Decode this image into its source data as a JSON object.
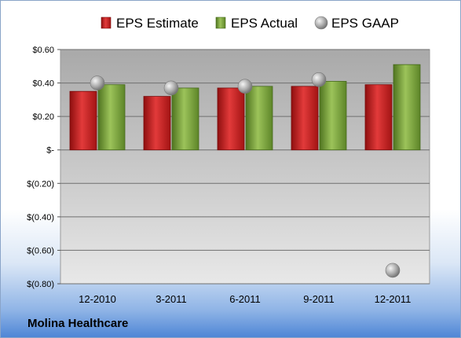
{
  "company": "Molina Healthcare",
  "chart_data": {
    "type": "bar",
    "categories": [
      "12-2010",
      "3-2011",
      "6-2011",
      "9-2011",
      "12-2011"
    ],
    "series": [
      {
        "name": "EPS Estimate",
        "values": [
          0.35,
          0.32,
          0.37,
          0.38,
          0.39
        ],
        "color": "#cc1f1f",
        "kind": "bar"
      },
      {
        "name": "EPS Actual",
        "values": [
          0.39,
          0.37,
          0.38,
          0.41,
          0.51
        ],
        "color": "#7aa33a",
        "kind": "bar"
      },
      {
        "name": "EPS GAAP",
        "values": [
          0.4,
          0.37,
          0.38,
          0.42,
          -0.72
        ],
        "color": "#9a9a9a",
        "kind": "marker"
      }
    ],
    "yticks": [
      "$0.60",
      "$0.40",
      "$0.20",
      "$-",
      "$(0.20)",
      "$(0.40)",
      "$(0.60)",
      "$(0.80)"
    ],
    "ytick_values": [
      0.6,
      0.4,
      0.2,
      0,
      -0.2,
      -0.4,
      -0.6,
      -0.8
    ],
    "ylim": [
      -0.8,
      0.6
    ],
    "grid": true,
    "legend_position": "top"
  }
}
